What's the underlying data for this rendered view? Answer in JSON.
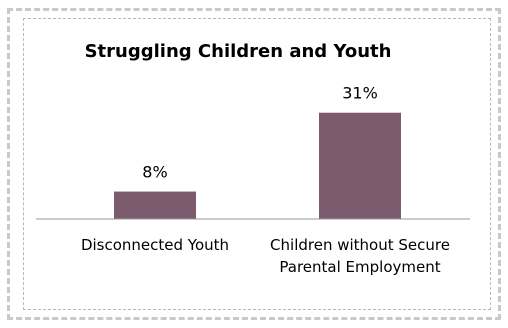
{
  "chart_data": {
    "type": "bar",
    "title": "Struggling Children and Youth",
    "categories": [
      [
        "Disconnected Youth"
      ],
      [
        "Children without Secure",
        "Parental Employment"
      ]
    ],
    "values": [
      8,
      31
    ],
    "data_labels": [
      "8%",
      "31%"
    ],
    "ylim": [
      0,
      35
    ],
    "grid": false,
    "bar_color": "#7d5b6e",
    "axis_color": "#9a9a9a"
  }
}
